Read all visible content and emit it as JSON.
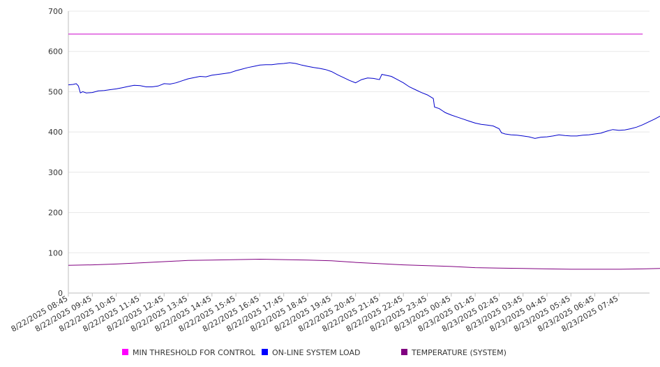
{
  "chart_data": {
    "type": "line",
    "title": "",
    "xlabel": "",
    "ylabel": "",
    "ylim": [
      0,
      700
    ],
    "yticks": [
      0,
      100,
      200,
      300,
      400,
      500,
      600,
      700
    ],
    "grid": true,
    "legend_position": "bottom",
    "categories": [
      "8/22/2025 08:45",
      "8/22/2025 09:45",
      "8/22/2025 10:45",
      "8/22/2025 11:45",
      "8/22/2025 12:45",
      "8/22/2025 13:45",
      "8/22/2025 14:45",
      "8/22/2025 15:45",
      "8/22/2025 16:45",
      "8/22/2025 17:45",
      "8/22/2025 18:45",
      "8/22/2025 19:45",
      "8/22/2025 20:45",
      "8/22/2025 21:45",
      "8/22/2025 22:45",
      "8/22/2025 23:45",
      "8/23/2025 00:45",
      "8/23/2025 01:45",
      "8/23/2025 02:45",
      "8/23/2025 03:45",
      "8/23/2025 04:45",
      "8/23/2025 05:45",
      "8/23/2025 06:45",
      "8/23/2025 07:45"
    ],
    "series": [
      {
        "name": "MIN THRESHOLD FOR CONTROL",
        "color": "#cc00cc",
        "legend_color": "#ff00ff",
        "points": [
          [
            0,
            643
          ],
          [
            24,
            643
          ]
        ]
      },
      {
        "name": "ON-LINE SYSTEM LOAD",
        "color": "#0000cc",
        "legend_color": "#0000ff",
        "points": [
          [
            0,
            517
          ],
          [
            0.2,
            518
          ],
          [
            0.33,
            520
          ],
          [
            0.42,
            514
          ],
          [
            0.5,
            497
          ],
          [
            0.6,
            500
          ],
          [
            0.75,
            497
          ],
          [
            1.0,
            498
          ],
          [
            1.25,
            502
          ],
          [
            1.5,
            503
          ],
          [
            1.75,
            505
          ],
          [
            2.0,
            507
          ],
          [
            2.25,
            510
          ],
          [
            2.5,
            513
          ],
          [
            2.75,
            516
          ],
          [
            3.0,
            515
          ],
          [
            3.25,
            512
          ],
          [
            3.5,
            512
          ],
          [
            3.75,
            514
          ],
          [
            4.0,
            520
          ],
          [
            4.25,
            519
          ],
          [
            4.5,
            522
          ],
          [
            4.75,
            527
          ],
          [
            5.0,
            532
          ],
          [
            5.25,
            535
          ],
          [
            5.5,
            538
          ],
          [
            5.75,
            537
          ],
          [
            6.0,
            541
          ],
          [
            6.25,
            543
          ],
          [
            6.5,
            545
          ],
          [
            6.75,
            547
          ],
          [
            7.0,
            552
          ],
          [
            7.25,
            556
          ],
          [
            7.5,
            560
          ],
          [
            7.75,
            563
          ],
          [
            8.0,
            566
          ],
          [
            8.25,
            567
          ],
          [
            8.5,
            567
          ],
          [
            8.75,
            569
          ],
          [
            9.0,
            570
          ],
          [
            9.25,
            572
          ],
          [
            9.5,
            570
          ],
          [
            9.75,
            566
          ],
          [
            10.0,
            563
          ],
          [
            10.25,
            560
          ],
          [
            10.5,
            558
          ],
          [
            10.75,
            555
          ],
          [
            11.0,
            550
          ],
          [
            11.25,
            542
          ],
          [
            11.5,
            535
          ],
          [
            11.75,
            528
          ],
          [
            12.0,
            522
          ],
          [
            12.25,
            530
          ],
          [
            12.5,
            534
          ],
          [
            12.75,
            533
          ],
          [
            13.0,
            530
          ],
          [
            13.1,
            543
          ],
          [
            13.5,
            538
          ],
          [
            13.75,
            530
          ],
          [
            14.0,
            522
          ],
          [
            14.25,
            512
          ],
          [
            14.5,
            505
          ],
          [
            14.75,
            498
          ],
          [
            15.0,
            492
          ],
          [
            15.25,
            483
          ],
          [
            15.3,
            462
          ],
          [
            15.5,
            458
          ],
          [
            15.75,
            448
          ],
          [
            16.0,
            442
          ],
          [
            16.25,
            437
          ],
          [
            16.5,
            432
          ],
          [
            16.75,
            427
          ],
          [
            17.0,
            422
          ],
          [
            17.25,
            419
          ],
          [
            17.5,
            417
          ],
          [
            17.75,
            415
          ],
          [
            18.0,
            408
          ],
          [
            18.1,
            398
          ],
          [
            18.25,
            395
          ],
          [
            18.5,
            393
          ],
          [
            18.75,
            392
          ],
          [
            19.0,
            390
          ],
          [
            19.25,
            388
          ],
          [
            19.5,
            384
          ],
          [
            19.75,
            387
          ],
          [
            20.0,
            388
          ],
          [
            20.25,
            390
          ],
          [
            20.5,
            393
          ],
          [
            20.75,
            391
          ],
          [
            21.0,
            390
          ],
          [
            21.25,
            390
          ],
          [
            21.5,
            392
          ],
          [
            21.75,
            393
          ],
          [
            22.0,
            395
          ],
          [
            22.25,
            397
          ],
          [
            22.5,
            402
          ],
          [
            22.75,
            406
          ],
          [
            23.0,
            404
          ],
          [
            23.25,
            405
          ],
          [
            23.5,
            408
          ],
          [
            23.75,
            412
          ],
          [
            24.0,
            418
          ],
          [
            24.25,
            425
          ],
          [
            24.5,
            432
          ],
          [
            24.75,
            440
          ],
          [
            25.0,
            445
          ],
          [
            25.3,
            451
          ]
        ]
      },
      {
        "name": "TEMPERATURE (SYSTEM)",
        "color": "#800080",
        "legend_color": "#800080",
        "points": [
          [
            0,
            69
          ],
          [
            1,
            70
          ],
          [
            2,
            72
          ],
          [
            3,
            75
          ],
          [
            4,
            78
          ],
          [
            5,
            81
          ],
          [
            6,
            82
          ],
          [
            7,
            83
          ],
          [
            8,
            84
          ],
          [
            9,
            83
          ],
          [
            10,
            82
          ],
          [
            11,
            80
          ],
          [
            12,
            76
          ],
          [
            13,
            73
          ],
          [
            14,
            70
          ],
          [
            15,
            68
          ],
          [
            16,
            66
          ],
          [
            17,
            63
          ],
          [
            18,
            62
          ],
          [
            19,
            61
          ],
          [
            20,
            60
          ],
          [
            21,
            59
          ],
          [
            22,
            59
          ],
          [
            23,
            59
          ],
          [
            24,
            60
          ],
          [
            25.3,
            62
          ]
        ]
      }
    ]
  }
}
